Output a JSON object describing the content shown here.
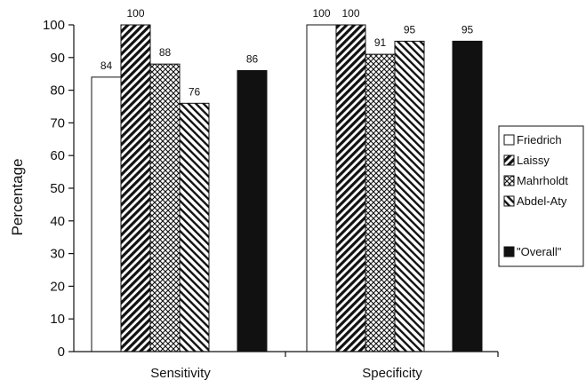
{
  "chart_data": {
    "type": "bar",
    "categories": [
      "Sensitivity",
      "Specificity"
    ],
    "series": [
      {
        "name": "Friedrich",
        "values": [
          84,
          100
        ],
        "pattern": "white"
      },
      {
        "name": "Laissy",
        "values": [
          100,
          100
        ],
        "pattern": "diagonal-hatch"
      },
      {
        "name": "Mahrholdt",
        "values": [
          88,
          91
        ],
        "pattern": "crosshatch"
      },
      {
        "name": "Abdel-Aty",
        "values": [
          76,
          95
        ],
        "pattern": "diagonal-hatch-dense"
      },
      {
        "name": "\"Overall\"",
        "values": [
          86,
          95
        ],
        "pattern": "solid-black"
      }
    ],
    "data_labels": [
      [
        "84",
        "100",
        "88",
        "76",
        "86"
      ],
      [
        "100",
        "100",
        "91",
        "95",
        "95"
      ]
    ],
    "ylabel": "Percentage",
    "xlabel": "",
    "ylim": [
      0,
      100
    ],
    "yticks": [
      "0",
      "10",
      "20",
      "30",
      "40",
      "50",
      "60",
      "70",
      "80",
      "90",
      "100"
    ],
    "grid": false,
    "legend_position": "right"
  }
}
